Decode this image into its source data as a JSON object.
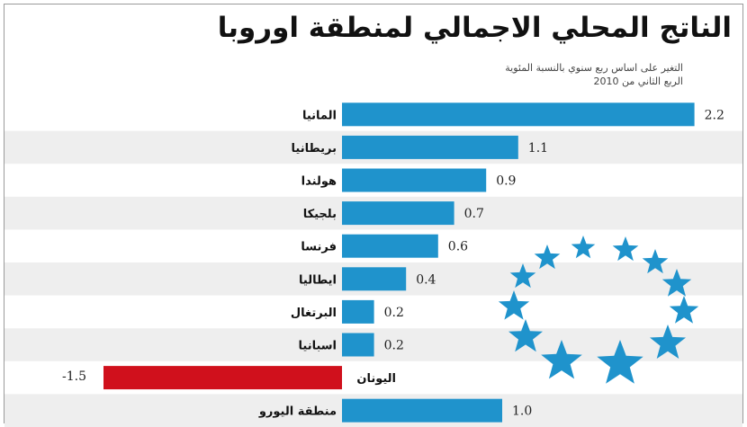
{
  "title": "الناتج المحلي الاجمالي لمنطقة اوروبا",
  "subtitle_line1": "التغير على اساس ربع سنوي بالنسبة المئوية",
  "subtitle_line2": "الربع الثاني من 2010",
  "colors": {
    "positive_bar": "#1f93cc",
    "negative_bar": "#d0101c",
    "row_stripe": "#eeeeee",
    "stars": "#1f93cc"
  },
  "chart_data": {
    "type": "bar",
    "orientation": "horizontal",
    "title": "الناتج المحلي الاجمالي لمنطقة اوروبا",
    "subtitle": "التغير على اساس ربع سنوي بالنسبة المئوية — الربع الثاني من 2010",
    "categories": [
      "المانيا",
      "بريطانيا",
      "هولندا",
      "بلجيكا",
      "فرنسا",
      "ايطاليا",
      "البرتغال",
      "اسبانيا",
      "اليونان",
      "منطقة اليورو"
    ],
    "values": [
      2.2,
      1.1,
      0.9,
      0.7,
      0.6,
      0.4,
      0.2,
      0.2,
      -1.5,
      1.0
    ],
    "value_labels": [
      "2.2",
      "1.1",
      "0.9",
      "0.7",
      "0.6",
      "0.4",
      "0.2",
      "0.2",
      "-1.5",
      "1.0"
    ],
    "xlim": [
      -1.5,
      2.2
    ],
    "grid": false,
    "legend": "none"
  }
}
